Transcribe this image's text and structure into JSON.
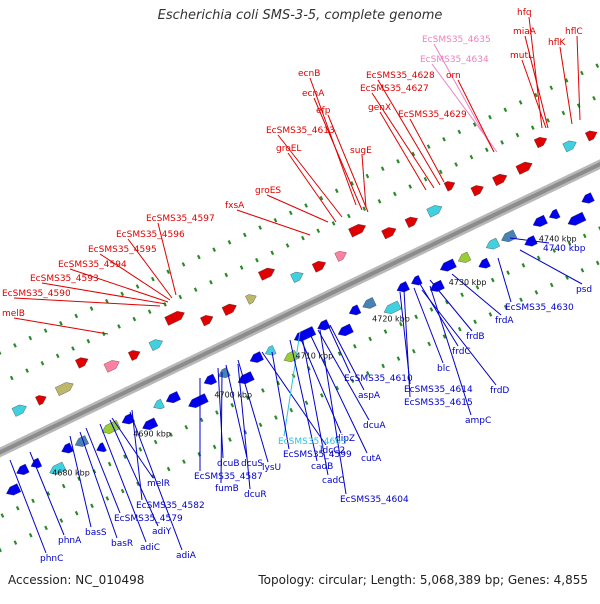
{
  "title": "Escherichia coli SMS-3-5, complete genome",
  "footer": {
    "accession": "Accession: NC_010498",
    "summary": "Topology: circular; Length: 5,068,389 bp; Genes: 4,855"
  },
  "colors": {
    "top_strand_label": "#e00000",
    "bottom_strand_label": "#0000cc",
    "pseudo_label_top": "#f080c0",
    "pseudo_label_bottom": "#30c0e0",
    "backbone": "#8c8c8c",
    "tick": "#2a8a2a"
  },
  "kbp_ticks": [
    {
      "label": "4680 kbp"
    },
    {
      "label": "4690 kbp"
    },
    {
      "label": "4700 kbp"
    },
    {
      "label": "4710 kbp"
    },
    {
      "label": "4720 kbp"
    },
    {
      "label": "4730 kbp"
    },
    {
      "label": "4740 kbp"
    }
  ],
  "top_labels": [
    {
      "text": "hfq",
      "color": "red"
    },
    {
      "text": "miaA",
      "color": "red"
    },
    {
      "text": "hflC",
      "color": "red"
    },
    {
      "text": "hflK",
      "color": "red"
    },
    {
      "text": "mutL",
      "color": "red"
    },
    {
      "text": "EcSMS35_4635",
      "color": "pink"
    },
    {
      "text": "EcSMS35_4634",
      "color": "pink"
    },
    {
      "text": "ecnB",
      "color": "red"
    },
    {
      "text": "EcSMS35_4628",
      "color": "red"
    },
    {
      "text": "orn",
      "color": "red"
    },
    {
      "text": "ecnA",
      "color": "red"
    },
    {
      "text": "EcSMS35_4627",
      "color": "red"
    },
    {
      "text": "efp",
      "color": "red"
    },
    {
      "text": "genX",
      "color": "red"
    },
    {
      "text": "EcSMS35_4629",
      "color": "red"
    },
    {
      "text": "EcSMS35_4613",
      "color": "red"
    },
    {
      "text": "groEL",
      "color": "red"
    },
    {
      "text": "sugE",
      "color": "red"
    },
    {
      "text": "groES",
      "color": "red"
    },
    {
      "text": "fxsA",
      "color": "red"
    },
    {
      "text": "EcSMS35_4597",
      "color": "red"
    },
    {
      "text": "EcSMS35_4596",
      "color": "red"
    },
    {
      "text": "EcSMS35_4595",
      "color": "red"
    },
    {
      "text": "EcSMS35_4594",
      "color": "red"
    },
    {
      "text": "EcSMS35_4593",
      "color": "red"
    },
    {
      "text": "EcSMS35_4590",
      "color": "red"
    },
    {
      "text": "melB",
      "color": "red"
    }
  ],
  "bottom_labels": [
    {
      "text": "4740 kbp",
      "color": "blue"
    },
    {
      "text": "psd",
      "color": "blue"
    },
    {
      "text": "EcSMS35_4630",
      "color": "blue"
    },
    {
      "text": "frdA",
      "color": "blue"
    },
    {
      "text": "frdB",
      "color": "blue"
    },
    {
      "text": "frdC",
      "color": "blue"
    },
    {
      "text": "blc",
      "color": "blue"
    },
    {
      "text": "frdD",
      "color": "blue"
    },
    {
      "text": "EcSMS35_4610",
      "color": "blue"
    },
    {
      "text": "EcSMS35_4614",
      "color": "blue"
    },
    {
      "text": "EcSMS35_4615",
      "color": "blue"
    },
    {
      "text": "aspA",
      "color": "blue"
    },
    {
      "text": "ampC",
      "color": "blue"
    },
    {
      "text": "dcuA",
      "color": "blue"
    },
    {
      "text": "dipZ",
      "color": "blue"
    },
    {
      "text": "cutA",
      "color": "blue"
    },
    {
      "text": "ldcC2",
      "color": "blue"
    },
    {
      "text": "EcSMS35_4603",
      "color": "cyan"
    },
    {
      "text": "EcSMS35_4599",
      "color": "blue"
    },
    {
      "text": "cadB",
      "color": "blue"
    },
    {
      "text": "cadC",
      "color": "blue"
    },
    {
      "text": "EcSMS35_4604",
      "color": "blue"
    },
    {
      "text": "lysU",
      "color": "blue"
    },
    {
      "text": "dcuB",
      "color": "blue"
    },
    {
      "text": "dcuS",
      "color": "blue"
    },
    {
      "text": "EcSMS35_4587",
      "color": "blue"
    },
    {
      "text": "fumB",
      "color": "blue"
    },
    {
      "text": "dcuR",
      "color": "blue"
    },
    {
      "text": "melR",
      "color": "blue"
    },
    {
      "text": "EcSMS35_4582",
      "color": "blue"
    },
    {
      "text": "EcSMS35_4579",
      "color": "blue"
    },
    {
      "text": "adiY",
      "color": "blue"
    },
    {
      "text": "adiC",
      "color": "blue"
    },
    {
      "text": "adiA",
      "color": "blue"
    },
    {
      "text": "basS",
      "color": "blue"
    },
    {
      "text": "basR",
      "color": "blue"
    },
    {
      "text": "phnA",
      "color": "blue"
    },
    {
      "text": "phnC",
      "color": "blue"
    }
  ]
}
